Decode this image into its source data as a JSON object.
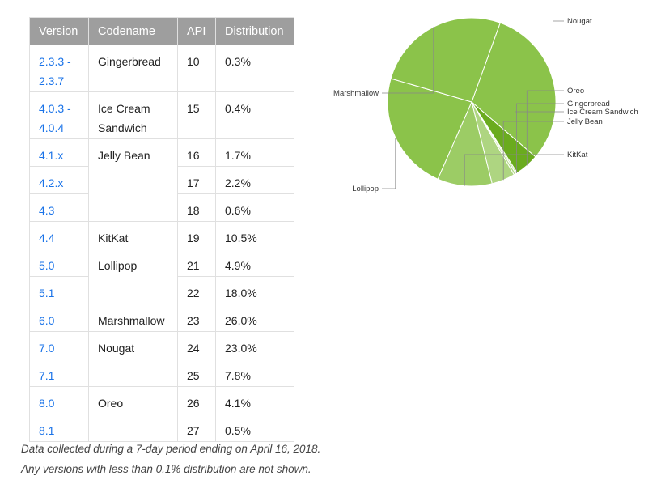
{
  "table": {
    "headers": [
      "Version",
      "Codename",
      "API",
      "Distribution"
    ],
    "rows": [
      {
        "version": "2.3.3 -\n2.3.7",
        "codename": "Gingerbread",
        "api": "10",
        "dist": "0.3%"
      },
      {
        "version": "4.0.3 -\n4.0.4",
        "codename": "Ice Cream\nSandwich",
        "api": "15",
        "dist": "0.4%"
      },
      {
        "version": "4.1.x",
        "codename": "Jelly Bean",
        "api": "16",
        "dist": "1.7%"
      },
      {
        "version": "4.2.x",
        "codename": "",
        "api": "17",
        "dist": "2.2%"
      },
      {
        "version": "4.3",
        "codename": "",
        "api": "18",
        "dist": "0.6%"
      },
      {
        "version": "4.4",
        "codename": "KitKat",
        "api": "19",
        "dist": "10.5%"
      },
      {
        "version": "5.0",
        "codename": "Lollipop",
        "api": "21",
        "dist": "4.9%"
      },
      {
        "version": "5.1",
        "codename": "",
        "api": "22",
        "dist": "18.0%"
      },
      {
        "version": "6.0",
        "codename": "Marshmallow",
        "api": "23",
        "dist": "26.0%"
      },
      {
        "version": "7.0",
        "codename": "Nougat",
        "api": "24",
        "dist": "23.0%"
      },
      {
        "version": "7.1",
        "codename": "",
        "api": "25",
        "dist": "7.8%"
      },
      {
        "version": "8.0",
        "codename": "Oreo",
        "api": "26",
        "dist": "4.1%"
      },
      {
        "version": "8.1",
        "codename": "",
        "api": "27",
        "dist": "0.5%"
      }
    ]
  },
  "footnotes": {
    "line1": "Data collected during a 7-day period ending on April 16, 2018.",
    "line2": "Any versions with less than 0.1% distribution are not shown."
  },
  "chart_data": {
    "type": "pie",
    "title": "",
    "slices": [
      {
        "label": "Nougat",
        "value": 30.8,
        "color": "#8bc34a"
      },
      {
        "label": "Oreo",
        "value": 4.6,
        "color": "#6aab1e"
      },
      {
        "label": "Gingerbread",
        "value": 0.3,
        "color": "#c5e1a5"
      },
      {
        "label": "Ice Cream Sandwich",
        "value": 0.4,
        "color": "#b5d98c"
      },
      {
        "label": "Jelly Bean",
        "value": 4.5,
        "color": "#aed581"
      },
      {
        "label": "KitKat",
        "value": 10.5,
        "color": "#9ccc65"
      },
      {
        "label": "Lollipop",
        "value": 22.9,
        "color": "#8bc34a"
      },
      {
        "label": "Marshmallow",
        "value": 26.0,
        "color": "#8bc34a"
      }
    ]
  }
}
